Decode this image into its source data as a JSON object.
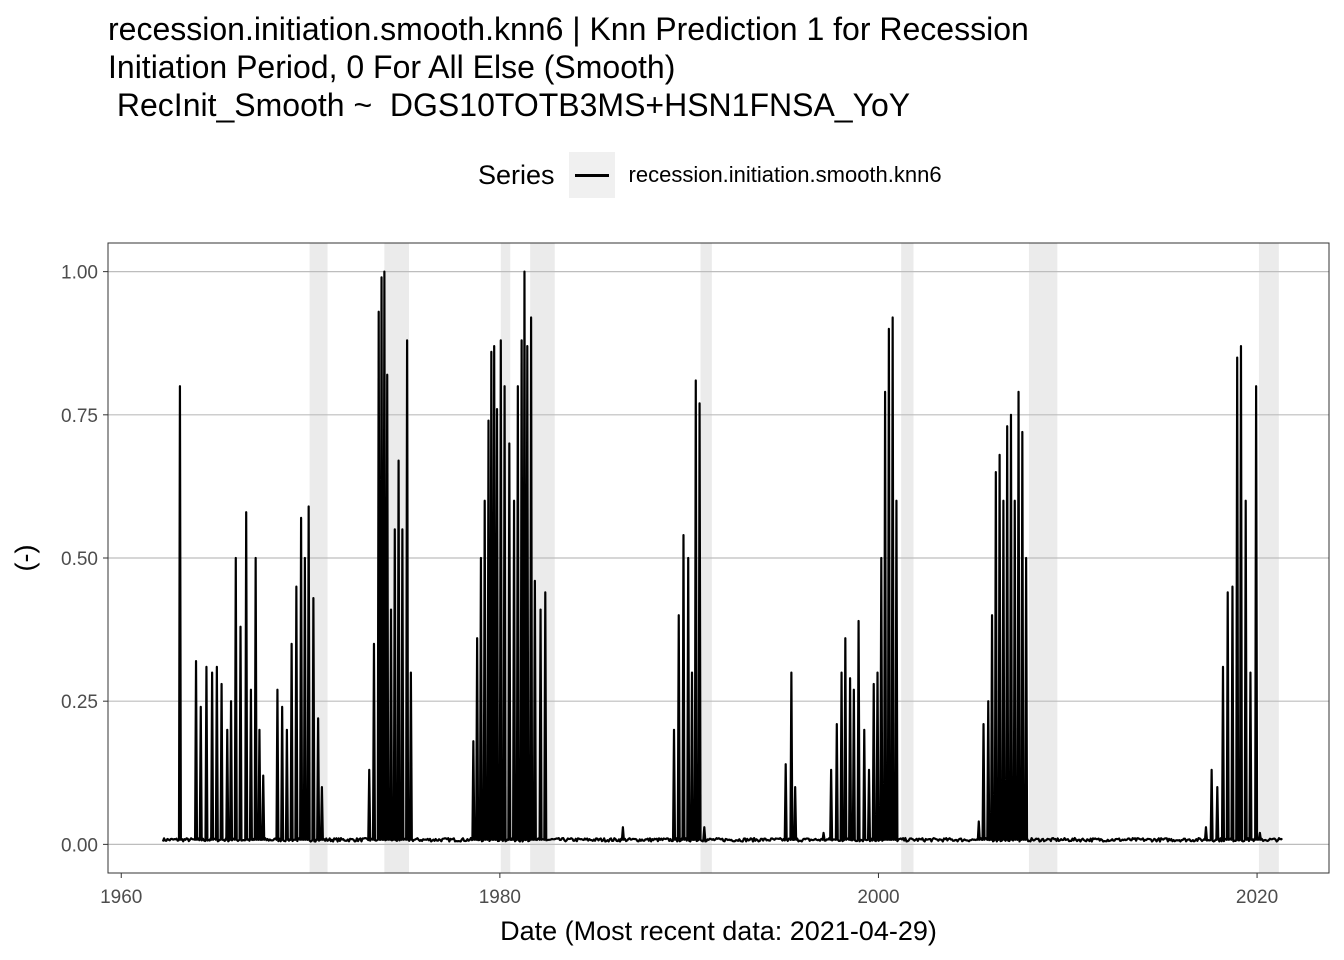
{
  "chart_data": {
    "type": "line",
    "title": "recession.initiation.smooth.knn6 | Knn Prediction 1 for Recession\nInitiation Period, 0 For All Else (Smooth)\n RecInit_Smooth ~  DGS10TOTB3MS+HSN1FNSA_YoY",
    "xlabel": "Date (Most recent data: 2021-04-29)",
    "ylabel": "(-)",
    "legend": {
      "title": "Series",
      "position": "top",
      "entries": [
        "recession.initiation.smooth.knn6"
      ]
    },
    "xlim": [
      1959.3,
      2023.8
    ],
    "ylim": [
      -0.05,
      1.05
    ],
    "x_ticks": [
      1960,
      1980,
      2000,
      2020
    ],
    "x_tick_labels": [
      "1960",
      "1980",
      "2000",
      "2020"
    ],
    "y_ticks": [
      0,
      0.25,
      0.5,
      0.75,
      1.0
    ],
    "y_tick_labels": [
      "0.00",
      "0.25",
      "0.50",
      "0.75",
      "1.00"
    ],
    "grid": true,
    "recession_shading": [
      [
        1969.95,
        1970.9
      ],
      [
        1973.9,
        1975.2
      ],
      [
        1980.05,
        1980.55
      ],
      [
        1981.6,
        1982.9
      ],
      [
        1990.6,
        1991.2
      ],
      [
        2001.2,
        2001.85
      ],
      [
        2007.95,
        2009.45
      ],
      [
        2020.1,
        2021.15
      ]
    ],
    "series": [
      {
        "name": "recession.initiation.smooth.knn6",
        "color": "#000000",
        "baseline": 0.008,
        "x_start": 1962.2,
        "x_end": 2021.33,
        "spikes": [
          [
            1963.1,
            0.8
          ],
          [
            1963.95,
            0.32
          ],
          [
            1964.2,
            0.24
          ],
          [
            1964.5,
            0.31
          ],
          [
            1964.8,
            0.3
          ],
          [
            1965.05,
            0.31
          ],
          [
            1965.3,
            0.28
          ],
          [
            1965.6,
            0.2
          ],
          [
            1965.8,
            0.25
          ],
          [
            1966.05,
            0.5
          ],
          [
            1966.3,
            0.38
          ],
          [
            1966.6,
            0.58
          ],
          [
            1966.85,
            0.27
          ],
          [
            1967.1,
            0.5
          ],
          [
            1967.3,
            0.2
          ],
          [
            1967.5,
            0.12
          ],
          [
            1968.25,
            0.27
          ],
          [
            1968.5,
            0.24
          ],
          [
            1968.75,
            0.2
          ],
          [
            1969.0,
            0.35
          ],
          [
            1969.25,
            0.45
          ],
          [
            1969.5,
            0.57
          ],
          [
            1969.7,
            0.5
          ],
          [
            1969.9,
            0.59
          ],
          [
            1970.15,
            0.43
          ],
          [
            1970.4,
            0.22
          ],
          [
            1970.6,
            0.1
          ],
          [
            1973.1,
            0.13
          ],
          [
            1973.35,
            0.35
          ],
          [
            1973.6,
            0.93
          ],
          [
            1973.75,
            0.99
          ],
          [
            1973.9,
            1.0
          ],
          [
            1974.05,
            0.82
          ],
          [
            1974.25,
            0.41
          ],
          [
            1974.45,
            0.55
          ],
          [
            1974.65,
            0.67
          ],
          [
            1974.85,
            0.55
          ],
          [
            1975.1,
            0.88
          ],
          [
            1975.3,
            0.3
          ],
          [
            1978.6,
            0.18
          ],
          [
            1978.8,
            0.36
          ],
          [
            1979.0,
            0.5
          ],
          [
            1979.2,
            0.6
          ],
          [
            1979.4,
            0.74
          ],
          [
            1979.55,
            0.86
          ],
          [
            1979.7,
            0.87
          ],
          [
            1979.85,
            0.76
          ],
          [
            1980.05,
            0.88
          ],
          [
            1980.25,
            0.8
          ],
          [
            1980.5,
            0.7
          ],
          [
            1980.75,
            0.6
          ],
          [
            1980.95,
            0.8
          ],
          [
            1981.15,
            0.88
          ],
          [
            1981.3,
            1.0
          ],
          [
            1981.45,
            0.87
          ],
          [
            1981.65,
            0.92
          ],
          [
            1981.85,
            0.46
          ],
          [
            1982.15,
            0.41
          ],
          [
            1982.4,
            0.44
          ],
          [
            1986.5,
            0.03
          ],
          [
            1989.2,
            0.2
          ],
          [
            1989.45,
            0.4
          ],
          [
            1989.7,
            0.54
          ],
          [
            1989.95,
            0.5
          ],
          [
            1990.15,
            0.3
          ],
          [
            1990.35,
            0.81
          ],
          [
            1990.55,
            0.77
          ],
          [
            1990.8,
            0.03
          ],
          [
            1995.1,
            0.14
          ],
          [
            1995.4,
            0.3
          ],
          [
            1995.6,
            0.1
          ],
          [
            1997.1,
            0.02
          ],
          [
            1997.5,
            0.13
          ],
          [
            1997.8,
            0.21
          ],
          [
            1998.05,
            0.3
          ],
          [
            1998.25,
            0.36
          ],
          [
            1998.5,
            0.29
          ],
          [
            1998.7,
            0.27
          ],
          [
            1998.95,
            0.39
          ],
          [
            1999.25,
            0.2
          ],
          [
            1999.5,
            0.13
          ],
          [
            1999.75,
            0.28
          ],
          [
            1999.95,
            0.3
          ],
          [
            2000.15,
            0.5
          ],
          [
            2000.35,
            0.79
          ],
          [
            2000.55,
            0.9
          ],
          [
            2000.75,
            0.92
          ],
          [
            2000.95,
            0.6
          ],
          [
            2005.3,
            0.04
          ],
          [
            2005.55,
            0.21
          ],
          [
            2005.8,
            0.25
          ],
          [
            2006.0,
            0.4
          ],
          [
            2006.2,
            0.65
          ],
          [
            2006.4,
            0.68
          ],
          [
            2006.6,
            0.6
          ],
          [
            2006.8,
            0.73
          ],
          [
            2007.0,
            0.75
          ],
          [
            2007.2,
            0.6
          ],
          [
            2007.4,
            0.79
          ],
          [
            2007.6,
            0.72
          ],
          [
            2007.8,
            0.5
          ],
          [
            2017.3,
            0.03
          ],
          [
            2017.6,
            0.13
          ],
          [
            2017.9,
            0.1
          ],
          [
            2018.2,
            0.31
          ],
          [
            2018.45,
            0.44
          ],
          [
            2018.7,
            0.45
          ],
          [
            2018.95,
            0.85
          ],
          [
            2019.15,
            0.87
          ],
          [
            2019.4,
            0.6
          ],
          [
            2019.65,
            0.3
          ],
          [
            2019.95,
            0.8
          ],
          [
            2020.15,
            0.02
          ]
        ]
      }
    ]
  }
}
